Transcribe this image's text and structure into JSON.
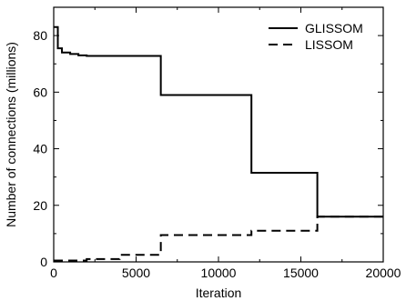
{
  "chart_data": {
    "type": "line",
    "title": "",
    "xlabel": "Iteration",
    "ylabel": "Number of connections (millions)",
    "xlim": [
      0,
      20000
    ],
    "ylim": [
      0,
      90
    ],
    "xticks": [
      0,
      5000,
      10000,
      15000,
      20000
    ],
    "yticks": [
      0,
      20,
      40,
      60,
      80
    ],
    "grid": false,
    "legend_position": "top-right",
    "series": [
      {
        "name": "GLISSOM",
        "style": "solid",
        "color": "#000000",
        "step": "post",
        "x": [
          0,
          250,
          500,
          1000,
          1500,
          2000,
          6500,
          12000,
          16000,
          20000
        ],
        "y": [
          83,
          75.5,
          74,
          73.5,
          73,
          72.8,
          59,
          31.5,
          16,
          16
        ]
      },
      {
        "name": "LISSOM",
        "style": "dashed",
        "color": "#000000",
        "step": "post",
        "x": [
          0,
          2000,
          4000,
          6500,
          12000,
          16000,
          20000
        ],
        "y": [
          0.5,
          1,
          2.5,
          9.5,
          11,
          16,
          16
        ]
      }
    ]
  }
}
